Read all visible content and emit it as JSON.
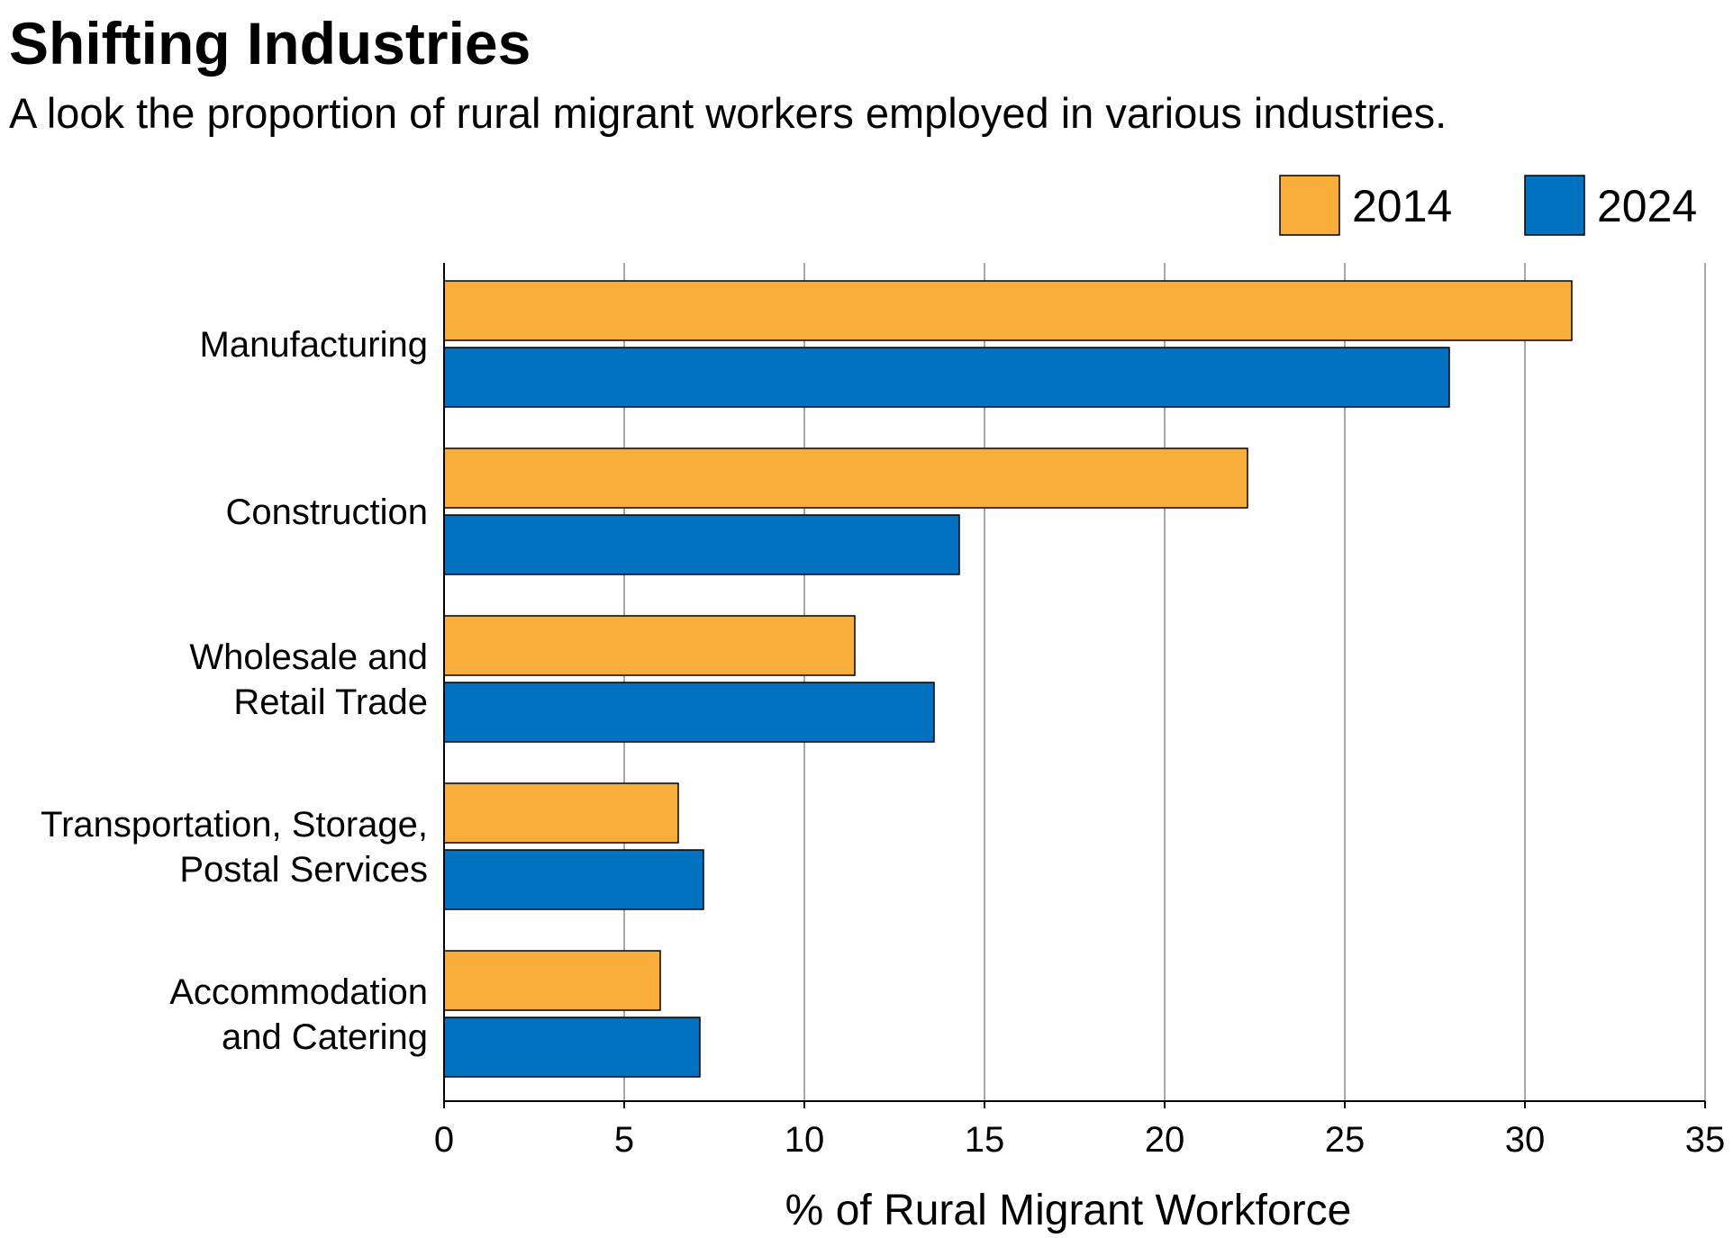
{
  "chart_data": {
    "type": "bar",
    "orientation": "horizontal",
    "title": "Shifting Industries",
    "subtitle": "A look the proportion of rural migrant workers employed in various industries.",
    "xlabel": "% of Rural Migrant Workforce",
    "ylabel": "",
    "xlim": [
      0,
      35
    ],
    "xticks": [
      0,
      5,
      10,
      15,
      20,
      25,
      30,
      35
    ],
    "grid": true,
    "legend_position": "top-right",
    "categories": [
      [
        "Manufacturing"
      ],
      [
        "Construction"
      ],
      [
        "Wholesale and",
        "Retail Trade"
      ],
      [
        "Transportation, Storage,",
        "Postal Services"
      ],
      [
        "Accommodation",
        "and Catering"
      ]
    ],
    "series": [
      {
        "name": "2014",
        "color": "#F9AE3B",
        "values": [
          31.3,
          22.3,
          11.4,
          6.5,
          6.0
        ]
      },
      {
        "name": "2024",
        "color": "#0072BF",
        "values": [
          27.9,
          14.3,
          13.6,
          7.2,
          7.1
        ]
      }
    ]
  }
}
